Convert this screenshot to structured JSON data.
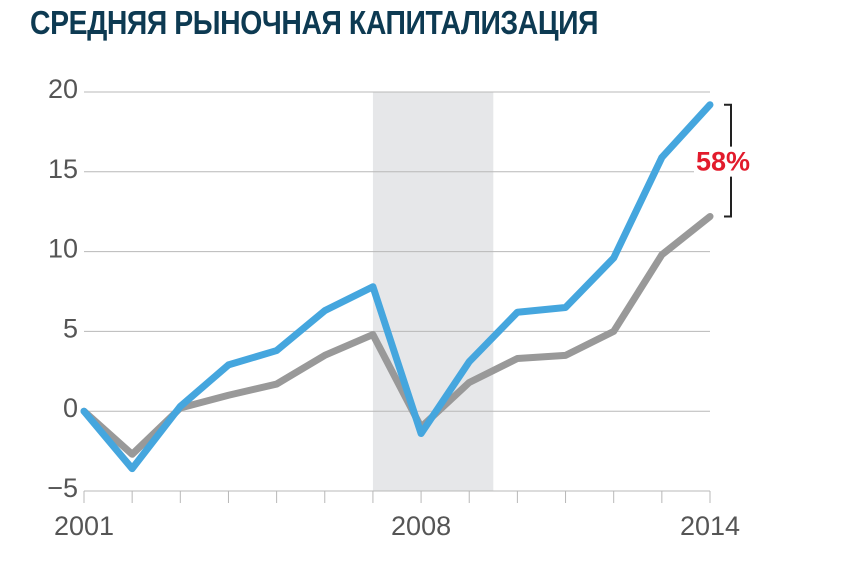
{
  "chart_data": {
    "type": "line",
    "title": "СРЕДНЯЯ РЫНОЧНАЯ КАПИТАЛИЗАЦИЯ",
    "xlabel": "",
    "ylabel": "",
    "x": [
      2001,
      2002,
      2003,
      2004,
      2005,
      2006,
      2007,
      2008,
      2009,
      2010,
      2011,
      2012,
      2013,
      2014
    ],
    "x_tick_labels": [
      "2001",
      "2008",
      "2014"
    ],
    "x_tick_values": [
      2001,
      2008,
      2014
    ],
    "y_ticks": [
      20,
      15,
      10,
      5,
      0,
      -5
    ],
    "ylim": [
      -5,
      20
    ],
    "xlim": [
      2001,
      2014
    ],
    "grid": true,
    "shaded_region": [
      2007,
      2009.5
    ],
    "series": [
      {
        "name": "",
        "color": "#45a6de",
        "values": [
          0,
          -3.6,
          0.3,
          2.9,
          3.8,
          6.3,
          7.8,
          -1.4,
          3.1,
          6.2,
          6.5,
          9.6,
          15.9,
          19.2
        ]
      },
      {
        "name": "",
        "color": "#999999",
        "values": [
          0,
          -2.7,
          0.2,
          1.0,
          1.7,
          3.5,
          4.8,
          -1.0,
          1.8,
          3.3,
          3.5,
          5.0,
          9.8,
          12.2
        ]
      }
    ],
    "annotation": {
      "text": "58%",
      "color": "#e21b2c",
      "x": 2014,
      "y_from": 12.2,
      "y_to": 19.2
    }
  }
}
